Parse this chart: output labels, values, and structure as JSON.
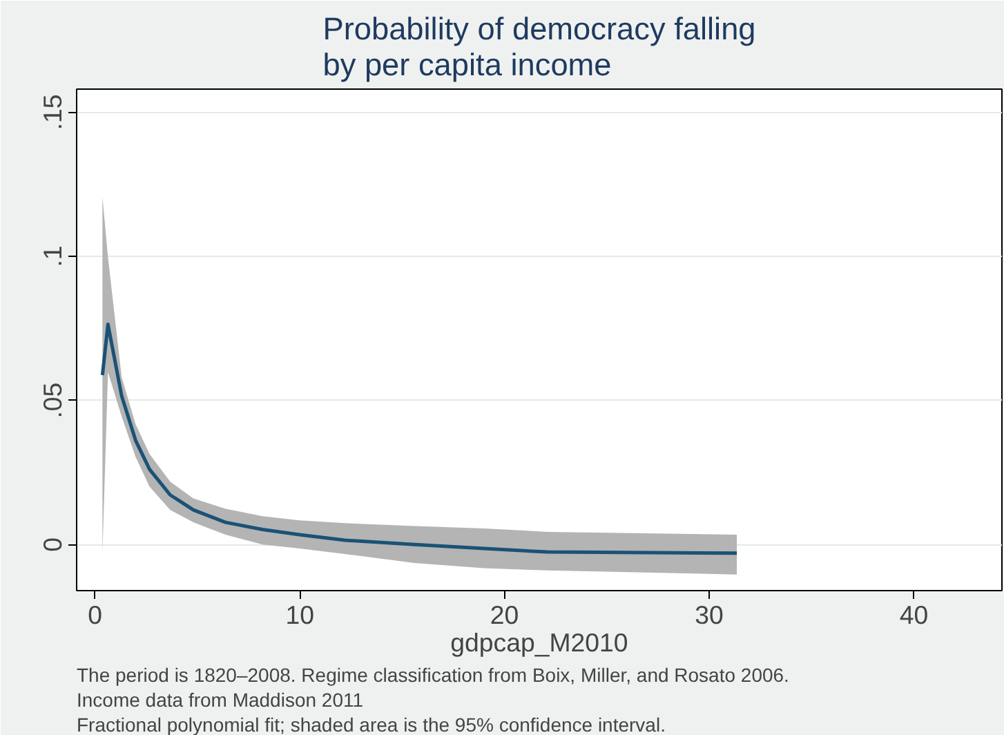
{
  "chart_data": {
    "type": "line",
    "title": "Probability of democracy falling\nby per capita income",
    "xlabel": "gdpcap_M2010",
    "x": [
      0.36,
      0.63,
      1.3,
      1.98,
      2.66,
      3.67,
      4.8,
      6.37,
      8.18,
      9.98,
      12.2,
      15.6,
      19.0,
      22.1,
      31.35
    ],
    "series": [
      {
        "color": "#1a5276",
        "values": [
          0.0588,
          0.0764,
          0.0515,
          0.0361,
          0.0261,
          0.0172,
          0.012,
          0.0077,
          0.0052,
          0.0034,
          0.0015,
          0.0,
          -0.0014,
          -0.0026,
          -0.003
        ],
        "lower": [
          -0.003,
          0.0598,
          0.0444,
          0.0304,
          0.0201,
          0.012,
          0.0077,
          0.0034,
          0.0,
          -0.0014,
          -0.0033,
          -0.0064,
          -0.0082,
          -0.009,
          -0.0104
        ],
        "upper": [
          0.1206,
          0.0997,
          0.058,
          0.0417,
          0.0314,
          0.0218,
          0.016,
          0.0124,
          0.0098,
          0.0084,
          0.0074,
          0.0064,
          0.0056,
          0.0044,
          0.0034
        ]
      }
    ],
    "xlim": [
      -0.9,
      44.3
    ],
    "ylim": [
      -0.016,
      0.158
    ],
    "xticks": [
      0,
      10,
      20,
      30,
      40
    ],
    "yticks": [
      0,
      {
        "value": 0.05,
        "label": ".05"
      },
      {
        "value": 0.1,
        "label": ".1"
      },
      {
        "value": 0.15,
        "label": ".15"
      }
    ],
    "grid": "y",
    "annotations": [
      "The period is 1820–2008. Regime classification from Boix, Miller, and Rosato 2006.",
      "Income data from Maddison 2011",
      "Fractional polynomial fit; shaded area is the 95% confidence interval."
    ]
  }
}
